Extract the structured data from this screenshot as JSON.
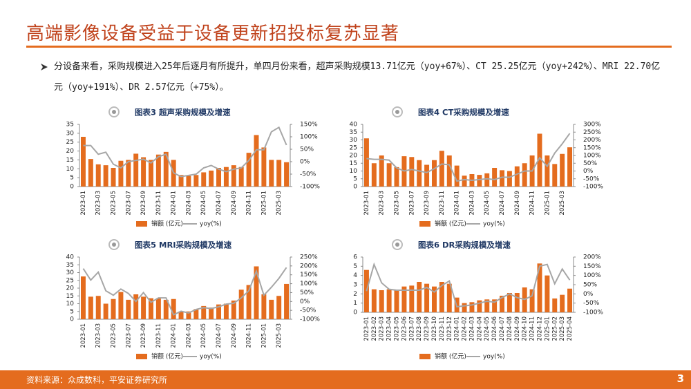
{
  "header": {
    "title": "高端影像设备受益于设备更新招投标复苏显著"
  },
  "bullet": "分设备来看，采购规模进入25年后逐月有所提升，单四月份来看，超声采购规模13.71亿元（yoy+67%）、CT 25.25亿元（yoy+242%）、MRI 22.70亿元（yoy+191%）、DR 2.57亿元（+75%）。",
  "footer": {
    "source": "资料来源：众成数科，平安证券研究所",
    "page": "3"
  },
  "chart_data": [
    {
      "type": "bar-line",
      "title": "图表3 超声采购规模及增速",
      "categories": [
        "2023-01",
        null,
        "2023-03",
        null,
        "2023-05",
        null,
        "2023-07",
        null,
        "2023-09",
        null,
        "2023-11",
        null,
        "2024-01",
        null,
        "2024-03",
        null,
        "2024-05",
        null,
        "2024-07",
        null,
        "2024-09",
        null,
        "2024-11",
        null,
        "2025-01",
        null,
        "2025-03",
        null
      ],
      "series": [
        {
          "name": "销额 (亿元)",
          "color": "#e46c1e",
          "values": [
            28,
            15.5,
            12.5,
            12,
            10.5,
            14.5,
            15,
            18.5,
            16.5,
            15,
            18,
            19.5,
            15,
            6.5,
            6,
            6.5,
            8,
            9,
            10.5,
            11,
            12,
            11,
            19,
            29,
            22,
            15,
            15,
            13.71
          ]
        },
        {
          "name": "yoy(%)",
          "color": "#a6a6a6",
          "axis": "y2",
          "values": [
            65,
            65,
            30,
            38,
            -10,
            -25,
            0,
            5,
            10,
            -5,
            20,
            30,
            -45,
            -60,
            -55,
            -50,
            -25,
            -15,
            -30,
            -40,
            -30,
            -25,
            5,
            48,
            48,
            120,
            138,
            67
          ]
        }
      ],
      "ylim": [
        0,
        35
      ],
      "yticks": [
        0,
        5,
        10,
        15,
        20,
        25,
        30,
        35
      ],
      "y2lim": [
        -100,
        150
      ],
      "y2ticks": [
        {
          "value": -100,
          "label": "-100%"
        },
        {
          "value": -50,
          "label": "-50%"
        },
        {
          "value": 0,
          "label": "0%"
        },
        {
          "value": 50,
          "label": "50%"
        },
        {
          "value": 100,
          "label": "100%"
        },
        {
          "value": 150,
          "label": "150%"
        }
      ]
    },
    {
      "type": "bar-line",
      "title": "图表4 CT采购规模及增速",
      "categories": [
        "2023-01",
        null,
        "2023-03",
        null,
        "2023-05",
        null,
        "2023-07",
        null,
        "2023-09",
        null,
        "2023-11",
        null,
        "2024-01",
        null,
        "2024-03",
        null,
        "2024-05",
        null,
        "2024-07",
        null,
        "2024-09",
        null,
        "2024-11",
        null,
        "2025-01",
        null,
        "2025-03",
        null
      ],
      "series": [
        {
          "name": "销额 (亿元)",
          "color": "#e46c1e",
          "values": [
            31,
            15,
            20,
            15,
            12.5,
            19.5,
            19,
            17,
            14,
            17,
            23,
            20,
            13.5,
            7,
            8,
            7.5,
            8.5,
            12,
            10.5,
            10,
            13,
            15,
            20,
            34,
            20,
            14.5,
            21,
            25.25
          ]
        },
        {
          "name": "yoy(%)",
          "color": "#a6a6a6",
          "axis": "y2",
          "values": [
            80,
            75,
            75,
            70,
            20,
            0,
            10,
            0,
            -10,
            15,
            45,
            40,
            -65,
            -55,
            -60,
            -55,
            -50,
            -55,
            -40,
            -40,
            -20,
            0,
            0,
            85,
            30,
            115,
            175,
            242
          ]
        }
      ],
      "ylim": [
        0,
        40
      ],
      "yticks": [
        0,
        5,
        10,
        15,
        20,
        25,
        30,
        35,
        40
      ],
      "y2lim": [
        -100,
        300
      ],
      "y2ticks": [
        {
          "value": -100,
          "label": "-100%"
        },
        {
          "value": -50,
          "label": "-50%"
        },
        {
          "value": 0,
          "label": "0%"
        },
        {
          "value": 50,
          "label": "50%"
        },
        {
          "value": 100,
          "label": "100%"
        },
        {
          "value": 150,
          "label": "150%"
        },
        {
          "value": 200,
          "label": "200%"
        },
        {
          "value": 250,
          "label": "250%"
        },
        {
          "value": 300,
          "label": "300%"
        }
      ]
    },
    {
      "type": "bar-line",
      "title": "图表5 MRI采购规模及增速",
      "categories": [
        "2023-01",
        null,
        "2023-03",
        null,
        "2023-05",
        null,
        "2023-07",
        null,
        "2023-09",
        null,
        "2023-11",
        null,
        "2024-01",
        null,
        "2024-03",
        null,
        "2024-05",
        null,
        "2024-07",
        null,
        "2024-09",
        null,
        "2024-11",
        null,
        "2025-01",
        null,
        "2025-03",
        null
      ],
      "series": [
        {
          "name": "销额 (亿元)",
          "color": "#e46c1e",
          "values": [
            27.5,
            14.5,
            15,
            10,
            13,
            17.5,
            12.5,
            16,
            14.5,
            13.5,
            13.5,
            12.5,
            13,
            5,
            5,
            6.5,
            8.5,
            7.5,
            9.5,
            10,
            12,
            19,
            22,
            34,
            16,
            12.5,
            15,
            22.7
          ]
        },
        {
          "name": "yoy(%)",
          "color": "#a6a6a6",
          "axis": "y2",
          "values": [
            185,
            120,
            165,
            60,
            35,
            70,
            45,
            0,
            50,
            -5,
            20,
            20,
            -75,
            -55,
            -65,
            -45,
            -35,
            -40,
            -30,
            -15,
            -10,
            20,
            60,
            170,
            35,
            80,
            130,
            191
          ]
        }
      ],
      "ylim": [
        0,
        40
      ],
      "yticks": [
        0,
        5,
        10,
        15,
        20,
        25,
        30,
        35,
        40
      ],
      "y2lim": [
        -100,
        250
      ],
      "y2ticks": [
        {
          "value": -100,
          "label": "-100%"
        },
        {
          "value": -50,
          "label": "-50%"
        },
        {
          "value": 0,
          "label": "0%"
        },
        {
          "value": 50,
          "label": "50%"
        },
        {
          "value": 100,
          "label": "100%"
        },
        {
          "value": 150,
          "label": "150%"
        },
        {
          "value": 200,
          "label": "200%"
        },
        {
          "value": 250,
          "label": "250%"
        }
      ]
    },
    {
      "type": "bar-line",
      "title": "图表6 DR采购规模及增速",
      "categories": [
        "2023-01",
        "2023-02",
        "2023-03",
        "2023-04",
        "2023-05",
        "2023-06",
        "2023-07",
        "2023-08",
        "2023-09",
        "2023-10",
        "2023-11",
        "2023-12",
        "2024-01",
        "2024-02",
        "2024-03",
        "2024-04",
        "2024-05",
        "2024-06",
        "2024-07",
        "2024-08",
        "2024-09",
        "2024-10",
        "2024-11",
        "2024-12",
        "2025-01",
        "2025-02",
        "2025-03",
        "2025-04"
      ],
      "series": [
        {
          "name": "销额 (亿元)",
          "color": "#e46c1e",
          "values": [
            4.6,
            2.5,
            2.4,
            2.5,
            2.4,
            2.8,
            2.9,
            3.3,
            3.1,
            2.8,
            3.3,
            3.1,
            1.6,
            1.0,
            1.1,
            1.3,
            1.4,
            1.4,
            1.8,
            2.1,
            2.1,
            2.7,
            2.5,
            5.3,
            4.0,
            1.5,
            1.9,
            2.57
          ]
        },
        {
          "name": "yoy(%)",
          "color": "#a6a6a6",
          "axis": "y2",
          "values": [
            15,
            160,
            60,
            25,
            20,
            20,
            20,
            20,
            35,
            10,
            45,
            70,
            -70,
            -65,
            -60,
            -50,
            -40,
            -45,
            -20,
            0,
            -20,
            -30,
            -10,
            150,
            160,
            55,
            135,
            75
          ]
        }
      ],
      "ylim": [
        0,
        6
      ],
      "yticks": [
        0,
        1,
        2,
        3,
        4,
        5,
        6
      ],
      "y2lim": [
        -100,
        200
      ],
      "y2ticks": [
        {
          "value": -100,
          "label": "-100%"
        },
        {
          "value": -50,
          "label": "-50%"
        },
        {
          "value": 0,
          "label": "0%"
        },
        {
          "value": 50,
          "label": "50%"
        },
        {
          "value": 100,
          "label": "100%"
        },
        {
          "value": 150,
          "label": "150%"
        },
        {
          "value": 200,
          "label": "200%"
        }
      ]
    }
  ]
}
